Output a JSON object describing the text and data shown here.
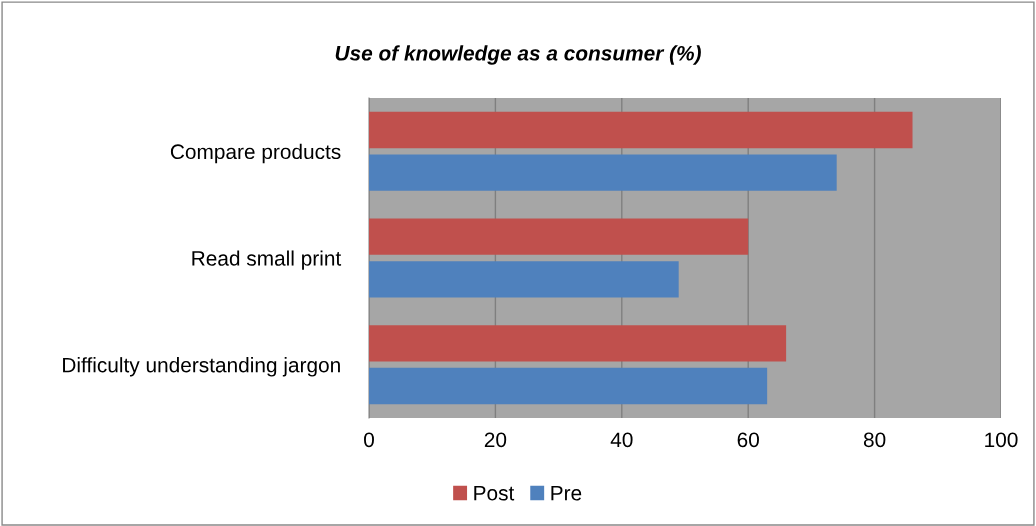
{
  "chart_data": {
    "type": "bar",
    "orientation": "horizontal",
    "title": "Use of knowledge as a consumer (%)",
    "categories": [
      "Compare products",
      "Read small print",
      "Difficulty understanding jargon"
    ],
    "series": [
      {
        "name": "Post",
        "color": "#c0504d",
        "values": [
          86,
          60,
          66
        ]
      },
      {
        "name": "Pre",
        "color": "#4f81bd",
        "values": [
          74,
          49,
          63
        ]
      }
    ],
    "xlim": [
      0,
      100
    ],
    "xticks": [
      0,
      20,
      40,
      60,
      80,
      100
    ],
    "grid": "x",
    "legend": "bottom"
  }
}
